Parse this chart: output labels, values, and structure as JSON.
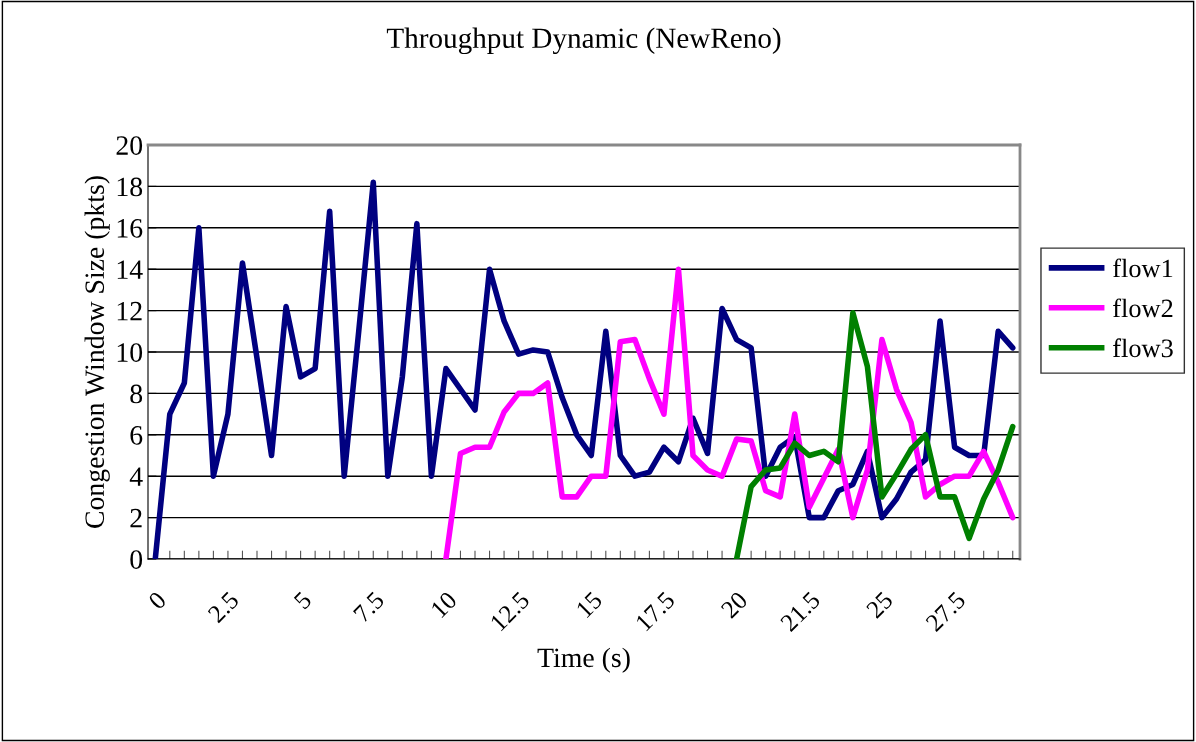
{
  "chart_data": {
    "type": "line",
    "title": "Throughput Dynamic (NewReno)",
    "xlabel": "Time (s)",
    "ylabel": "Congestion Window Size (pkts)",
    "categories": [
      "0",
      null,
      null,
      null,
      null,
      "2.5",
      null,
      null,
      null,
      null,
      "5",
      null,
      null,
      null,
      null,
      "7.5",
      null,
      null,
      null,
      null,
      "10",
      null,
      null,
      null,
      null,
      "12.5",
      null,
      null,
      null,
      null,
      "15",
      null,
      null,
      null,
      null,
      "17.5",
      null,
      null,
      null,
      null,
      "20",
      null,
      null,
      null,
      null,
      "21.5",
      null,
      null,
      null,
      null,
      "25",
      null,
      null,
      null,
      null,
      "27.5",
      null,
      null,
      null,
      null
    ],
    "series": [
      {
        "name": "flow1",
        "color": "#000080",
        "values": [
          0,
          7,
          8.5,
          16,
          4,
          7,
          14.3,
          9.7,
          5,
          12.2,
          8.8,
          9.2,
          16.8,
          4,
          11,
          18.2,
          4,
          8.8,
          16.2,
          4,
          9.2,
          8.2,
          7.2,
          14,
          11.5,
          9.9,
          10.1,
          10,
          7.8,
          6,
          5,
          11,
          5,
          4,
          4.2,
          5.4,
          4.7,
          6.8,
          5.1,
          12.1,
          10.6,
          10.2,
          4,
          5.4,
          5.9,
          2,
          2,
          3.3,
          3.6,
          5.2,
          2,
          2.9,
          4.2,
          4.8,
          11.5,
          5.4,
          5,
          5,
          11,
          10.2
        ]
      },
      {
        "name": "flow2",
        "color": "#ff00ff",
        "values": [
          null,
          null,
          null,
          null,
          null,
          null,
          null,
          null,
          null,
          null,
          null,
          null,
          null,
          null,
          null,
          null,
          null,
          null,
          null,
          null,
          0,
          5.1,
          5.4,
          5.4,
          7.1,
          8,
          8,
          8.5,
          3,
          3,
          4,
          4,
          10.5,
          10.6,
          8.7,
          7,
          14,
          5,
          4.3,
          4,
          5.8,
          5.7,
          3.3,
          3,
          7,
          2.5,
          3.9,
          5.3,
          2,
          4.3,
          10.6,
          8.2,
          6.6,
          3,
          3.6,
          4,
          4,
          5.2,
          3.7,
          2
        ]
      },
      {
        "name": "flow3",
        "color": "#008000",
        "values": [
          null,
          null,
          null,
          null,
          null,
          null,
          null,
          null,
          null,
          null,
          null,
          null,
          null,
          null,
          null,
          null,
          null,
          null,
          null,
          null,
          null,
          null,
          null,
          null,
          null,
          null,
          null,
          null,
          null,
          null,
          null,
          null,
          null,
          null,
          null,
          null,
          null,
          null,
          null,
          null,
          0,
          3.5,
          4.3,
          4.4,
          5.6,
          5,
          5.2,
          4.7,
          11.9,
          9.3,
          3,
          4.1,
          5.3,
          6,
          3,
          3,
          1,
          2.9,
          4.3,
          6.4
        ]
      }
    ],
    "ylim": [
      0,
      20
    ],
    "yticks": [
      0,
      2,
      4,
      6,
      8,
      10,
      12,
      14,
      16,
      18,
      20
    ],
    "grid": "y",
    "legend": "right",
    "marker": "none",
    "line_style": "solid"
  }
}
